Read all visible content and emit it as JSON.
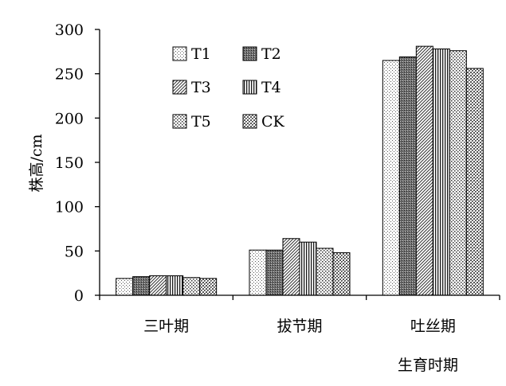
{
  "chart_data": {
    "type": "bar",
    "categories": [
      "三叶期",
      "拔节期",
      "吐丝期"
    ],
    "series": [
      {
        "name": "T1",
        "values": [
          19,
          51,
          265
        ],
        "pattern": "dots-sparse"
      },
      {
        "name": "T2",
        "values": [
          21,
          51,
          269
        ],
        "pattern": "dark-dots"
      },
      {
        "name": "T3",
        "values": [
          22,
          64,
          281
        ],
        "pattern": "diag"
      },
      {
        "name": "T4",
        "values": [
          22,
          60,
          278
        ],
        "pattern": "vstripes"
      },
      {
        "name": "T5",
        "values": [
          20,
          53,
          276
        ],
        "pattern": "dots-medium"
      },
      {
        "name": "CK",
        "values": [
          19,
          48,
          256
        ],
        "pattern": "checker"
      }
    ],
    "xlabel": "生育时期",
    "ylabel": "株高/cm",
    "ylim": [
      0,
      300
    ],
    "yticks": [
      0,
      50,
      100,
      150,
      200,
      250,
      300
    ],
    "grid": false,
    "legend": "top-left, inside plot, 2 columns"
  }
}
